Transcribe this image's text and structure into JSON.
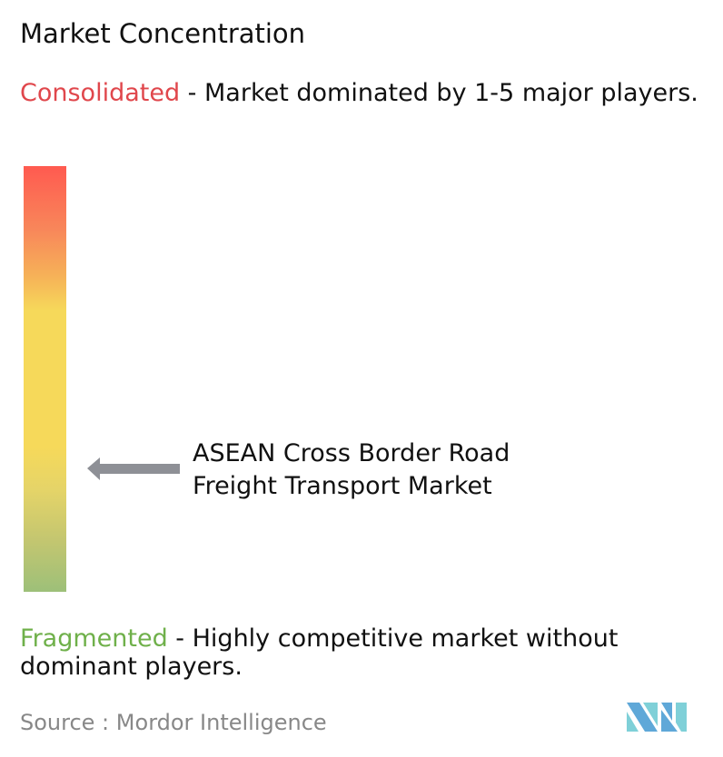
{
  "title": "Market Concentration",
  "consolidated": {
    "label": "Consolidated",
    "description": " - Market dominated by 1-5 major players.",
    "color": "#e0474c"
  },
  "fragmented": {
    "label": "Fragmented",
    "description": " - Highly competitive market without dominant players.",
    "color": "#6fb04a"
  },
  "gradient_colors": [
    "#ff5a50",
    "#f6b258",
    "#f6d95a",
    "#9dc079"
  ],
  "market": {
    "name": "ASEAN Cross Border Road Freight Transport Market",
    "indicator": "arrow-left-icon",
    "arrow_color": "#8e9096"
  },
  "source": {
    "label": "Source :",
    "value": "Mordor Intelligence"
  },
  "logo": {
    "text": "Mordor Intelligence"
  }
}
